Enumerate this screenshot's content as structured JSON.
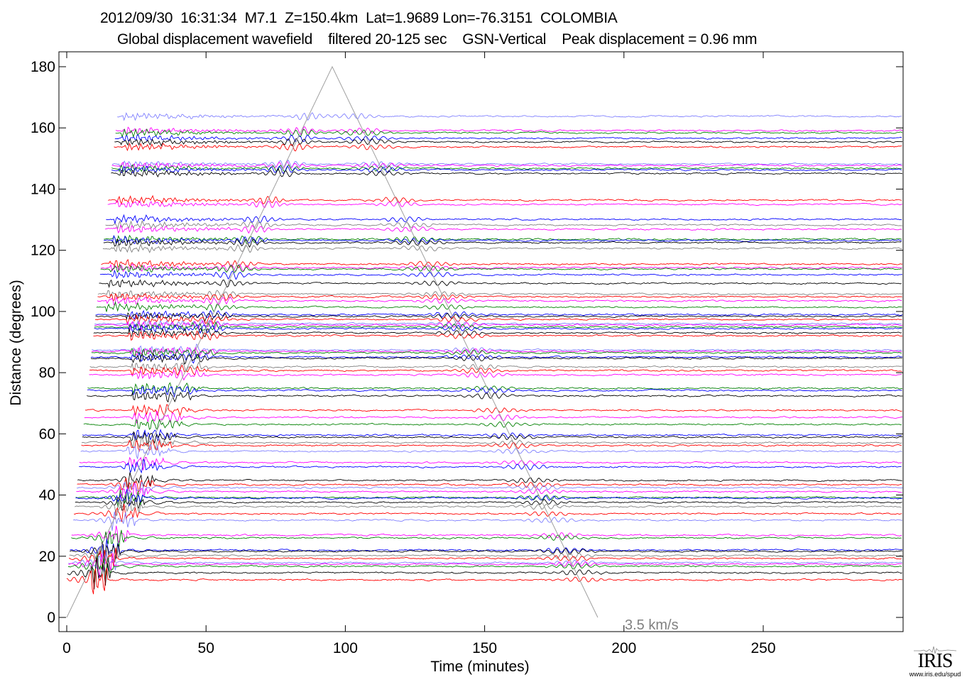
{
  "chart_data": {
    "type": "line",
    "title": "2012/09/30  16:31:34  M7.1  Z=150.4km  Lat=1.9689 Lon=-76.3151  COLOMBIA",
    "subtitle": "Global displacement wavefield    filtered 20-125 sec    GSN-Vertical    Peak displacement = 0.96 mm",
    "xlabel": "Time (minutes)",
    "ylabel": "Distance (degrees)",
    "xlim": [
      -3,
      300
    ],
    "ylim": [
      -4.6,
      185
    ],
    "xticks": [
      0,
      50,
      100,
      150,
      200,
      250
    ],
    "yticks": [
      0,
      20,
      40,
      60,
      80,
      100,
      120,
      140,
      160,
      180
    ],
    "grid": false,
    "reference_line": {
      "label": "3.5 km/s",
      "color": "#a0a0a0",
      "points": [
        [
          0,
          0
        ],
        [
          95.3,
          180
        ],
        [
          190.6,
          0
        ]
      ]
    },
    "traces": [
      {
        "distance": 163.8,
        "color": "#8080ff"
      },
      {
        "distance": 159.1,
        "color": "#ff00ff"
      },
      {
        "distance": 158.4,
        "color": "#008000"
      },
      {
        "distance": 156.6,
        "color": "#0000ff"
      },
      {
        "distance": 155.4,
        "color": "#000000"
      },
      {
        "distance": 153.8,
        "color": "#ff0000"
      },
      {
        "distance": 148.2,
        "color": "#8080ff"
      },
      {
        "distance": 147.7,
        "color": "#ff00ff"
      },
      {
        "distance": 146.8,
        "color": "#008000"
      },
      {
        "distance": 146.3,
        "color": "#0000ff"
      },
      {
        "distance": 145.1,
        "color": "#000000"
      },
      {
        "distance": 136.4,
        "color": "#ff0000"
      },
      {
        "distance": 135.0,
        "color": "#ff00ff"
      },
      {
        "distance": 130.1,
        "color": "#0000ff"
      },
      {
        "distance": 128.3,
        "color": "#808080"
      },
      {
        "distance": 126.9,
        "color": "#ff00ff"
      },
      {
        "distance": 123.6,
        "color": "#008000"
      },
      {
        "distance": 123.2,
        "color": "#0000ff"
      },
      {
        "distance": 122.5,
        "color": "#000000"
      },
      {
        "distance": 120.6,
        "color": "#808080"
      },
      {
        "distance": 115.5,
        "color": "#ff0000"
      },
      {
        "distance": 114.3,
        "color": "#ff00ff"
      },
      {
        "distance": 113.9,
        "color": "#008000"
      },
      {
        "distance": 112.0,
        "color": "#0000ff"
      },
      {
        "distance": 109.2,
        "color": "#000000"
      },
      {
        "distance": 105.7,
        "color": "#808080"
      },
      {
        "distance": 104.8,
        "color": "#ff0000"
      },
      {
        "distance": 103.5,
        "color": "#ff00ff"
      },
      {
        "distance": 101.4,
        "color": "#008000"
      },
      {
        "distance": 99.0,
        "color": "#0000ff"
      },
      {
        "distance": 98.4,
        "color": "#000000"
      },
      {
        "distance": 97.4,
        "color": "#ff0000"
      },
      {
        "distance": 96.0,
        "color": "#8080ff"
      },
      {
        "distance": 95.6,
        "color": "#ff00ff"
      },
      {
        "distance": 94.9,
        "color": "#008000"
      },
      {
        "distance": 94.4,
        "color": "#0000ff"
      },
      {
        "distance": 93.0,
        "color": "#000000"
      },
      {
        "distance": 92.1,
        "color": "#ff0000"
      },
      {
        "distance": 87.4,
        "color": "#8080ff"
      },
      {
        "distance": 87.0,
        "color": "#ff00ff"
      },
      {
        "distance": 86.5,
        "color": "#008000"
      },
      {
        "distance": 85.1,
        "color": "#0000ff"
      },
      {
        "distance": 84.7,
        "color": "#000000"
      },
      {
        "distance": 81.9,
        "color": "#808080"
      },
      {
        "distance": 80.7,
        "color": "#ff0000"
      },
      {
        "distance": 79.3,
        "color": "#ff00ff"
      },
      {
        "distance": 74.9,
        "color": "#008000"
      },
      {
        "distance": 74.2,
        "color": "#0000ff"
      },
      {
        "distance": 72.4,
        "color": "#000000"
      },
      {
        "distance": 67.7,
        "color": "#ff0000"
      },
      {
        "distance": 65.4,
        "color": "#ff00ff"
      },
      {
        "distance": 63.1,
        "color": "#008000"
      },
      {
        "distance": 59.6,
        "color": "#0000ff"
      },
      {
        "distance": 58.9,
        "color": "#000000"
      },
      {
        "distance": 57.1,
        "color": "#808080"
      },
      {
        "distance": 56.2,
        "color": "#ff0000"
      },
      {
        "distance": 54.3,
        "color": "#8080ff"
      },
      {
        "distance": 50.6,
        "color": "#ff00ff"
      },
      {
        "distance": 49.2,
        "color": "#0000ff"
      },
      {
        "distance": 44.8,
        "color": "#000000"
      },
      {
        "distance": 43.4,
        "color": "#ff0000"
      },
      {
        "distance": 42.4,
        "color": "#8080ff"
      },
      {
        "distance": 41.1,
        "color": "#ff00ff"
      },
      {
        "distance": 39.2,
        "color": "#008000"
      },
      {
        "distance": 39.0,
        "color": "#0000ff"
      },
      {
        "distance": 37.6,
        "color": "#000000"
      },
      {
        "distance": 36.2,
        "color": "#808080"
      },
      {
        "distance": 33.9,
        "color": "#ff0000"
      },
      {
        "distance": 31.8,
        "color": "#8080ff"
      },
      {
        "distance": 26.9,
        "color": "#ff00ff"
      },
      {
        "distance": 26.0,
        "color": "#008000"
      },
      {
        "distance": 22.0,
        "color": "#0000ff"
      },
      {
        "distance": 21.6,
        "color": "#000000"
      },
      {
        "distance": 20.2,
        "color": "#808080"
      },
      {
        "distance": 19.3,
        "color": "#ff0000"
      },
      {
        "distance": 17.9,
        "color": "#8080ff"
      },
      {
        "distance": 17.4,
        "color": "#ff00ff"
      },
      {
        "distance": 16.7,
        "color": "#008000"
      },
      {
        "distance": 14.6,
        "color": "#000000"
      },
      {
        "distance": 12.3,
        "color": "#ff0000"
      }
    ]
  },
  "logo": {
    "name": "IRIS",
    "url": "www.iris.edu/spud"
  }
}
